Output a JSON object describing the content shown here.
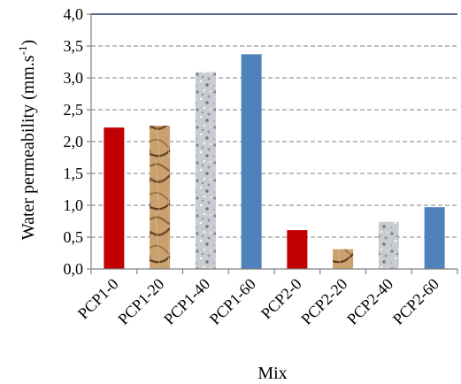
{
  "chart_data": {
    "type": "bar",
    "title": "",
    "xlabel": "Mix",
    "ylabel": "Water permeability (mm.s",
    "ylabel_sup": "-1",
    "ylabel_close": ")",
    "categories": [
      "PCP1-0",
      "PCP1-20",
      "PCP1-40",
      "PCP1-60",
      "PCP2-0",
      "PCP2-20",
      "PCP2-40",
      "PCP2-60"
    ],
    "values": [
      2.22,
      2.25,
      3.09,
      3.37,
      0.61,
      0.31,
      0.74,
      0.97
    ],
    "bar_fills": [
      "solid-red",
      "wood-texture",
      "granite-texture",
      "solid-blue",
      "solid-red",
      "wood-texture",
      "granite-texture",
      "solid-blue"
    ],
    "colors": {
      "solid-red": "#c00000",
      "solid-blue": "#4f81bd",
      "wood-base": "#c9a06e",
      "wood-dark": "#7a5530",
      "granite-base": "#c8ccd0",
      "granite-dark": "#7d8389",
      "top-line": "#1f3864"
    },
    "ylim": [
      0,
      4.0
    ],
    "yticks": [
      "0,0",
      "0,5",
      "1,0",
      "1,5",
      "2,0",
      "2,5",
      "3,0",
      "3,5",
      "4,0"
    ],
    "grid": true,
    "legend": "none"
  }
}
